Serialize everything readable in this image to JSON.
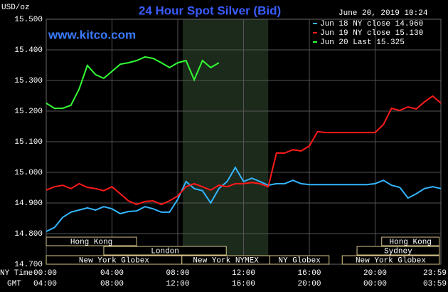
{
  "chart_data": {
    "type": "line",
    "title": "24 Hour Spot Silver (Bid)",
    "y_axis_label": "USD/oz",
    "timestamp": "June 20, 2019 10:24",
    "watermark": "www.kitco.com",
    "x_axis_label": "NY Time",
    "x2_axis_label": "GMT",
    "xlim": [
      0,
      24
    ],
    "xticks": [
      {
        "value": 0,
        "label": "00:00"
      },
      {
        "value": 4,
        "label": "04:00"
      },
      {
        "value": 8,
        "label": "08:00"
      },
      {
        "value": 12,
        "label": "12:00"
      },
      {
        "value": 16,
        "label": "16:00"
      },
      {
        "value": 20,
        "label": "20:00"
      },
      {
        "value": 24,
        "label": "23:59"
      }
    ],
    "x2_tick_labels": [
      "04:00",
      "08:00",
      "12:00",
      "16:00",
      "20:00",
      "00:00",
      "03:59"
    ],
    "ylim": [
      14.7,
      15.5
    ],
    "yticks": [
      {
        "value": 14.7,
        "label": "14.700"
      },
      {
        "value": 14.8,
        "label": "14.800"
      },
      {
        "value": 14.9,
        "label": "14.900"
      },
      {
        "value": 15.0,
        "label": "15.000"
      },
      {
        "value": 15.1,
        "label": "15.100"
      },
      {
        "value": 15.2,
        "label": "15.200"
      },
      {
        "value": 15.3,
        "label": "15.300"
      },
      {
        "value": 15.4,
        "label": "15.400"
      },
      {
        "value": 15.5,
        "label": "15.500"
      }
    ],
    "grid": true,
    "legend_position": "top-right",
    "shaded_xrange": [
      8.3,
      13.5
    ],
    "session_rows": [
      [
        {
          "label": "Hong Kong",
          "start": 0,
          "end": 5.5
        },
        {
          "label": "Hong Kong",
          "start": 20.4,
          "end": 23.9
        }
      ],
      [
        {
          "label": "London",
          "start": 3.5,
          "end": 10.95
        },
        {
          "label": "Sydney",
          "start": 18.9,
          "end": 23.9
        }
      ],
      [
        {
          "label": "New York Globex",
          "start": 0,
          "end": 8.25
        },
        {
          "label": "New York NYMEX",
          "start": 8.25,
          "end": 13.6
        },
        {
          "label": "NY Globex",
          "start": 13.6,
          "end": 17.2
        },
        {
          "label": "New York Globex",
          "start": 18,
          "end": 23.9
        }
      ]
    ],
    "x": [
      0,
      0.5,
      1,
      1.5,
      2,
      2.5,
      3,
      3.5,
      4,
      4.5,
      5,
      5.5,
      6,
      6.5,
      7,
      7.5,
      8,
      8.5,
      9,
      9.5,
      10,
      10.5,
      11,
      11.5,
      12,
      12.5,
      13,
      13.5,
      14,
      14.5,
      15,
      15.5,
      16,
      16.5,
      17,
      17.5,
      18,
      18.5,
      19,
      19.5,
      20,
      20.5,
      21,
      21.5,
      22,
      22.5,
      23,
      23.5,
      24
    ],
    "series": [
      {
        "name": "Jun 18 NY close 14.960",
        "color": "#33b5ff",
        "values": [
          14.807,
          14.82,
          14.853,
          14.87,
          14.877,
          14.884,
          14.877,
          14.888,
          14.881,
          14.865,
          14.872,
          14.874,
          14.888,
          14.881,
          14.87,
          14.87,
          14.912,
          14.97,
          14.947,
          14.94,
          14.9,
          14.947,
          14.97,
          15.016,
          14.97,
          14.981,
          14.97,
          14.958,
          14.963,
          14.963,
          14.974,
          14.963,
          14.96,
          14.96,
          14.96,
          14.96,
          14.96,
          14.96,
          14.96,
          14.96,
          14.963,
          14.974,
          14.958,
          14.951,
          14.916,
          14.93,
          14.947,
          14.953,
          14.947
        ]
      },
      {
        "name": "Jun 19 NY close 15.130",
        "color": "#ff1a1a",
        "values": [
          14.942,
          14.953,
          14.958,
          14.947,
          14.963,
          14.951,
          14.947,
          14.94,
          14.953,
          14.93,
          14.907,
          14.895,
          14.905,
          14.907,
          14.895,
          14.907,
          14.923,
          14.953,
          14.963,
          14.953,
          14.942,
          14.958,
          14.953,
          14.963,
          14.963,
          14.967,
          14.963,
          14.953,
          15.063,
          15.063,
          15.074,
          15.07,
          15.086,
          15.133,
          15.13,
          15.13,
          15.13,
          15.13,
          15.13,
          15.13,
          15.13,
          15.156,
          15.209,
          15.202,
          15.214,
          15.207,
          15.23,
          15.249,
          15.226
        ]
      },
      {
        "name": "Jun 20 Last 15.325",
        "color": "#33ff33",
        "values": [
          15.226,
          15.209,
          15.209,
          15.219,
          15.272,
          15.349,
          15.319,
          15.307,
          15.33,
          15.353,
          15.358,
          15.365,
          15.377,
          15.372,
          15.358,
          15.342,
          15.358,
          15.365,
          15.302,
          15.365,
          15.342,
          15.358,
          null,
          null,
          null,
          null,
          null,
          null,
          null,
          null,
          null,
          null,
          null,
          null,
          null,
          null,
          null,
          null,
          null,
          null,
          null,
          null,
          null,
          null,
          null,
          null,
          null,
          null,
          null
        ]
      }
    ]
  }
}
